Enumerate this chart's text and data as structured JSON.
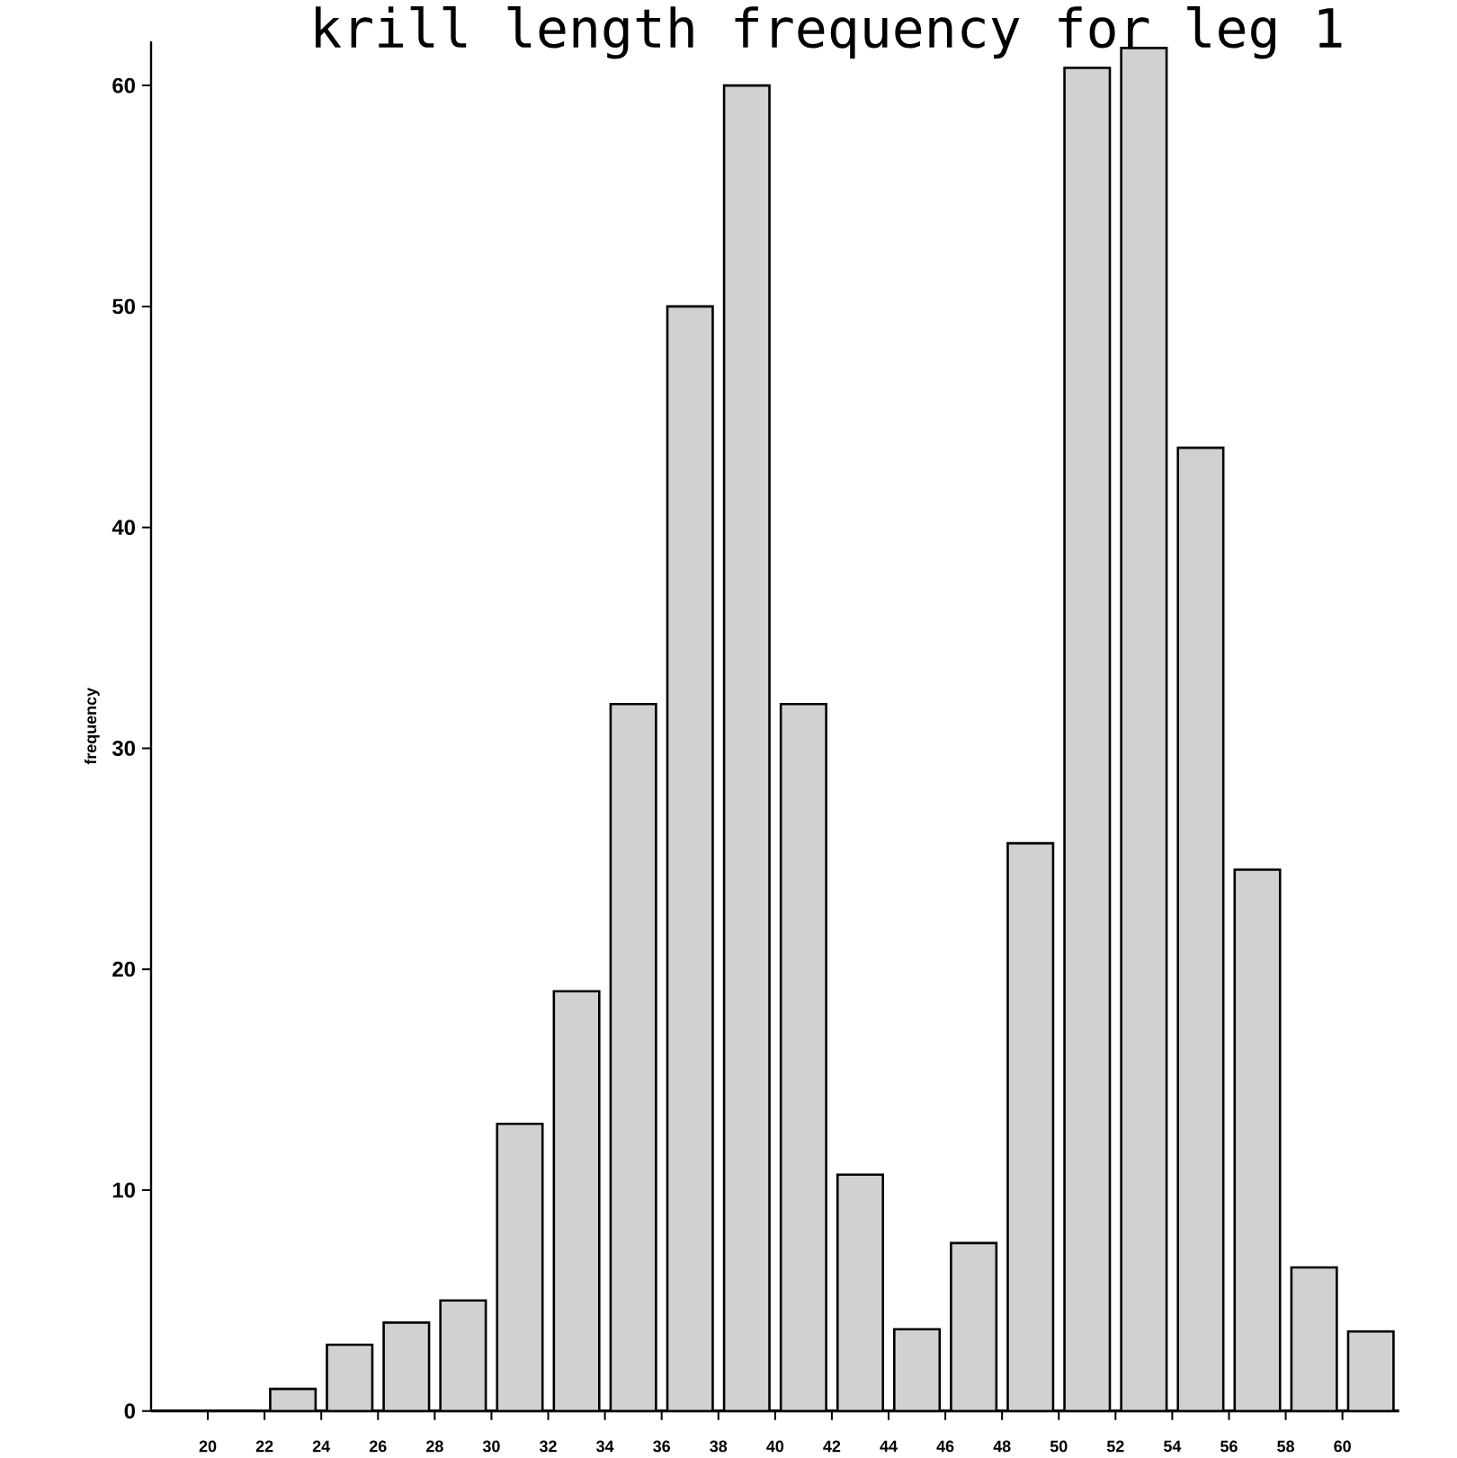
{
  "chart_data": {
    "type": "histogram",
    "title": "krill length frequency for leg 1",
    "ylabel": "frequency",
    "bins": [
      20,
      22,
      24,
      26,
      28,
      30,
      32,
      34,
      36,
      38,
      40,
      42,
      44,
      46,
      48,
      50,
      52,
      54,
      56,
      58,
      60,
      62
    ],
    "values": [
      0,
      1,
      3,
      4,
      5,
      13,
      19,
      32,
      50,
      60,
      32,
      10.7,
      3.7,
      7.6,
      25.7,
      60.8,
      61.7,
      43.6,
      24.5,
      6.5,
      3.6
    ],
    "color": "#000000",
    "xlim": [
      18,
      62
    ],
    "ylim": [
      0,
      62
    ],
    "xticks": [
      20,
      22,
      24,
      26,
      28,
      30,
      32,
      34,
      36,
      38,
      40,
      42,
      44,
      46,
      48,
      50,
      52,
      54,
      56,
      58,
      60
    ],
    "yticks": [
      0,
      10,
      20,
      30,
      40,
      50,
      60
    ],
    "grid": false
  }
}
